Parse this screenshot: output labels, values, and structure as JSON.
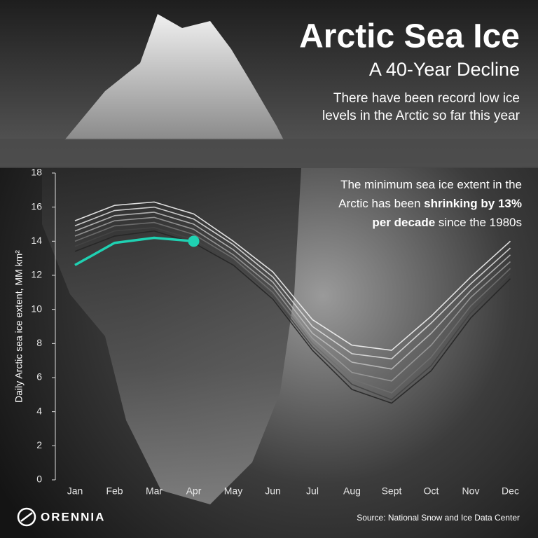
{
  "chart_data": {
    "type": "line",
    "title": "Arctic Sea Ice",
    "subtitle": "A 40-Year Decline",
    "description": [
      "There have been record low ice",
      "levels in the Arctic so far this year"
    ],
    "annotation": [
      [
        "The minimum sea ice extent in the"
      ],
      [
        "Arctic has been ",
        "shrinking by 13%"
      ],
      [
        "per decade",
        " since the 1980s"
      ]
    ],
    "y_label": "Daily Arctic sea ice extent, MM km²",
    "source": "Source: National Snow and Ice Data Center",
    "brand": "ORENNIA",
    "categories": [
      "Jan",
      "Feb",
      "Mar",
      "Apr",
      "May",
      "Jun",
      "Jul",
      "Aug",
      "Sept",
      "Oct",
      "Nov",
      "Dec"
    ],
    "ylim": [
      0,
      18
    ],
    "yticks": [
      0,
      2,
      4,
      6,
      8,
      10,
      12,
      14,
      16,
      18
    ],
    "series": [
      {
        "color": "#f2f2f2",
        "values": [
          15.2,
          16.1,
          16.3,
          15.6,
          14.0,
          12.2,
          9.4,
          7.9,
          7.6,
          9.6,
          11.9,
          14.0
        ]
      },
      {
        "color": "#dcdcdc",
        "values": [
          14.9,
          15.8,
          16.0,
          15.3,
          13.8,
          11.9,
          9.0,
          7.4,
          7.1,
          9.2,
          11.5,
          13.6
        ]
      },
      {
        "color": "#bdbdbd",
        "values": [
          14.6,
          15.5,
          15.7,
          15.0,
          13.5,
          11.6,
          8.6,
          6.9,
          6.5,
          8.6,
          11.1,
          13.2
        ]
      },
      {
        "color": "#9a9a9a",
        "values": [
          14.3,
          15.2,
          15.4,
          14.7,
          13.2,
          11.3,
          8.3,
          6.3,
          5.8,
          7.9,
          10.7,
          12.8
        ]
      },
      {
        "color": "#707070",
        "values": [
          14.0,
          14.9,
          15.1,
          14.4,
          13.0,
          11.0,
          8.0,
          5.9,
          5.1,
          7.2,
          10.2,
          12.4
        ]
      },
      {
        "color": "#454545",
        "values": [
          13.7,
          14.6,
          14.8,
          14.1,
          12.8,
          10.8,
          7.8,
          5.6,
          4.7,
          6.7,
          9.8,
          12.1
        ]
      },
      {
        "color": "#262626",
        "values": [
          13.4,
          14.3,
          14.6,
          13.9,
          12.6,
          10.6,
          7.6,
          5.3,
          4.5,
          6.4,
          9.5,
          11.8
        ]
      },
      {
        "color": "#1fd1b2",
        "values": [
          12.6,
          13.9,
          14.2,
          14.0,
          null,
          null,
          null,
          null,
          null,
          null,
          null,
          null
        ]
      }
    ]
  }
}
